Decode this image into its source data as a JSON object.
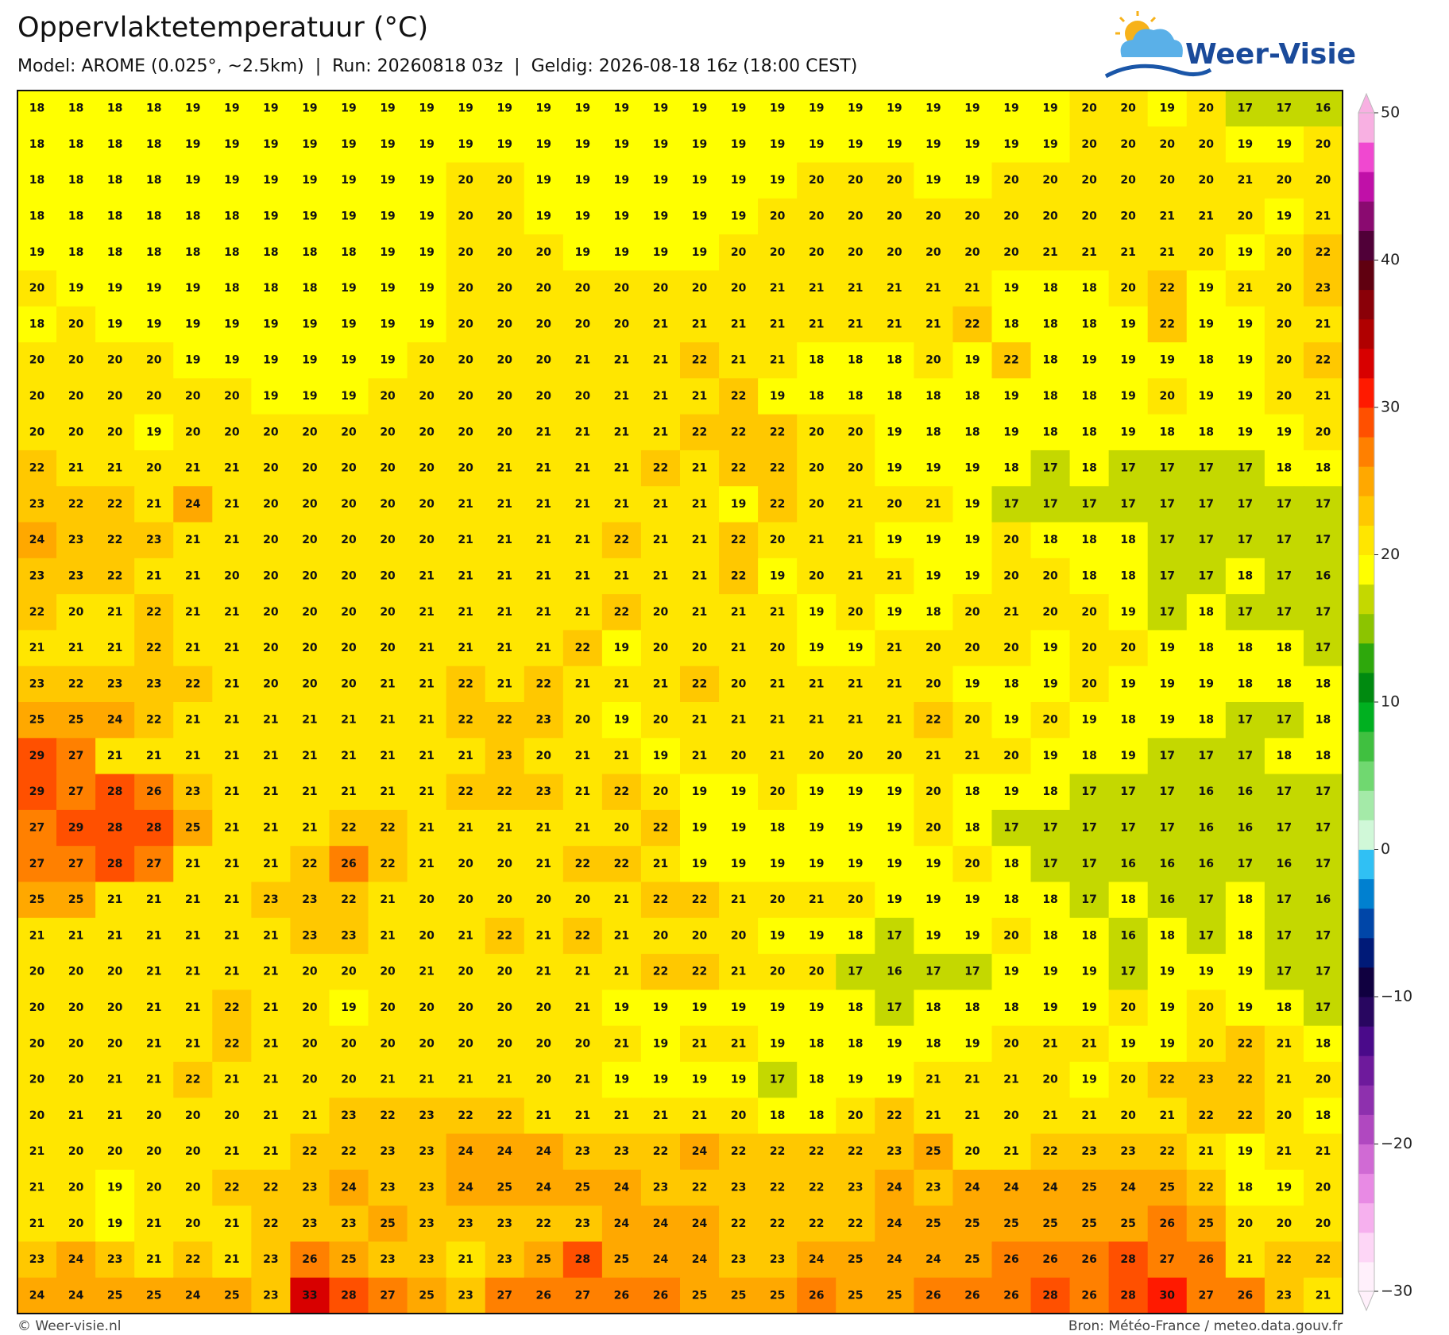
{
  "header": {
    "title": "Oppervlaktetemperatuur (°C)",
    "subtitle": "Model: AROME (0.025°, ~2.5km)  |  Run: 20260818 03z  |  Geldig: 2026-08-18 16z (18:00 CEST)"
  },
  "logo": "Weer-Visie",
  "map": {
    "rows": [
      [
        18,
        18,
        18,
        18,
        19,
        19,
        19,
        19,
        19,
        19,
        19,
        19,
        19,
        19,
        19,
        19,
        19,
        19,
        19,
        19,
        19,
        19,
        19,
        19,
        19,
        19,
        19,
        20,
        20,
        19,
        20,
        17,
        17,
        16
      ],
      [
        18,
        18,
        18,
        18,
        19,
        19,
        19,
        19,
        19,
        19,
        19,
        19,
        19,
        19,
        19,
        19,
        19,
        19,
        19,
        19,
        19,
        19,
        19,
        19,
        19,
        19,
        19,
        20,
        20,
        20,
        20,
        19,
        19,
        20
      ],
      [
        18,
        18,
        18,
        18,
        19,
        19,
        19,
        19,
        19,
        19,
        19,
        20,
        20,
        19,
        19,
        19,
        19,
        19,
        19,
        19,
        20,
        20,
        20,
        19,
        19,
        20,
        20,
        20,
        20,
        20,
        20,
        21,
        20,
        20
      ],
      [
        18,
        18,
        18,
        18,
        18,
        18,
        19,
        19,
        19,
        19,
        19,
        20,
        20,
        19,
        19,
        19,
        19,
        19,
        19,
        20,
        20,
        20,
        20,
        20,
        20,
        20,
        20,
        20,
        20,
        21,
        21,
        20,
        19,
        21
      ],
      [
        19,
        18,
        18,
        18,
        18,
        18,
        18,
        18,
        18,
        19,
        19,
        20,
        20,
        20,
        19,
        19,
        19,
        19,
        20,
        20,
        20,
        20,
        20,
        20,
        20,
        20,
        21,
        21,
        21,
        21,
        20,
        19,
        20,
        22
      ],
      [
        20,
        19,
        19,
        19,
        19,
        18,
        18,
        18,
        19,
        19,
        19,
        20,
        20,
        20,
        20,
        20,
        20,
        20,
        20,
        21,
        21,
        21,
        21,
        21,
        21,
        19,
        18,
        18,
        20,
        22,
        19,
        21,
        20,
        23
      ],
      [
        18,
        20,
        19,
        19,
        19,
        19,
        19,
        19,
        19,
        19,
        19,
        20,
        20,
        20,
        20,
        20,
        21,
        21,
        21,
        21,
        21,
        21,
        21,
        21,
        22,
        18,
        18,
        18,
        19,
        22,
        19,
        19,
        20,
        21
      ],
      [
        20,
        20,
        20,
        20,
        19,
        19,
        19,
        19,
        19,
        19,
        20,
        20,
        20,
        20,
        21,
        21,
        21,
        22,
        21,
        21,
        18,
        18,
        18,
        20,
        19,
        22,
        18,
        19,
        19,
        19,
        18,
        19,
        20,
        22
      ],
      [
        20,
        20,
        20,
        20,
        20,
        20,
        19,
        19,
        19,
        20,
        20,
        20,
        20,
        20,
        20,
        21,
        21,
        21,
        22,
        19,
        18,
        18,
        18,
        18,
        18,
        19,
        18,
        18,
        19,
        20,
        19,
        19,
        20,
        21
      ],
      [
        20,
        20,
        20,
        19,
        20,
        20,
        20,
        20,
        20,
        20,
        20,
        20,
        20,
        21,
        21,
        21,
        21,
        22,
        22,
        22,
        20,
        20,
        19,
        18,
        18,
        19,
        18,
        18,
        19,
        18,
        18,
        19,
        19,
        20
      ],
      [
        22,
        21,
        21,
        20,
        21,
        21,
        20,
        20,
        20,
        20,
        20,
        20,
        21,
        21,
        21,
        21,
        22,
        21,
        22,
        22,
        20,
        20,
        19,
        19,
        19,
        18,
        17,
        18,
        17,
        17,
        17,
        17,
        18,
        18
      ],
      [
        23,
        22,
        22,
        21,
        24,
        21,
        20,
        20,
        20,
        20,
        20,
        21,
        21,
        21,
        21,
        21,
        21,
        21,
        19,
        22,
        20,
        21,
        20,
        21,
        19,
        17,
        17,
        17,
        17,
        17,
        17,
        17,
        17,
        17
      ],
      [
        24,
        23,
        22,
        23,
        21,
        21,
        20,
        20,
        20,
        20,
        20,
        21,
        21,
        21,
        21,
        22,
        21,
        21,
        22,
        20,
        21,
        21,
        19,
        19,
        19,
        20,
        18,
        18,
        18,
        17,
        17,
        17,
        17,
        17
      ],
      [
        23,
        23,
        22,
        21,
        21,
        20,
        20,
        20,
        20,
        20,
        21,
        21,
        21,
        21,
        21,
        21,
        21,
        21,
        22,
        19,
        20,
        21,
        21,
        19,
        19,
        20,
        20,
        18,
        18,
        17,
        17,
        18,
        17,
        16
      ],
      [
        22,
        20,
        21,
        22,
        21,
        21,
        20,
        20,
        20,
        20,
        21,
        21,
        21,
        21,
        21,
        22,
        20,
        21,
        21,
        21,
        19,
        20,
        19,
        18,
        20,
        21,
        20,
        20,
        19,
        17,
        18,
        17,
        17,
        17
      ],
      [
        21,
        21,
        21,
        22,
        21,
        21,
        20,
        20,
        20,
        20,
        21,
        21,
        21,
        21,
        22,
        19,
        20,
        20,
        21,
        20,
        19,
        19,
        21,
        20,
        20,
        20,
        19,
        20,
        20,
        19,
        18,
        18,
        18,
        17
      ],
      [
        23,
        22,
        23,
        23,
        22,
        21,
        20,
        20,
        20,
        21,
        21,
        22,
        21,
        22,
        21,
        21,
        21,
        22,
        20,
        21,
        21,
        21,
        21,
        20,
        19,
        18,
        19,
        20,
        19,
        19,
        19,
        18,
        18,
        18
      ],
      [
        25,
        25,
        24,
        22,
        21,
        21,
        21,
        21,
        21,
        21,
        21,
        22,
        22,
        23,
        20,
        19,
        20,
        21,
        21,
        21,
        21,
        21,
        21,
        22,
        20,
        19,
        20,
        19,
        18,
        19,
        18,
        17,
        17,
        18
      ],
      [
        29,
        27,
        21,
        21,
        21,
        21,
        21,
        21,
        21,
        21,
        21,
        21,
        23,
        20,
        21,
        21,
        19,
        21,
        20,
        21,
        20,
        20,
        20,
        21,
        21,
        20,
        19,
        18,
        19,
        17,
        17,
        17,
        18,
        18
      ],
      [
        29,
        27,
        28,
        26,
        23,
        21,
        21,
        21,
        21,
        21,
        21,
        22,
        22,
        23,
        21,
        22,
        20,
        19,
        19,
        20,
        19,
        19,
        19,
        20,
        18,
        19,
        18,
        17,
        17,
        17,
        16,
        16,
        17,
        17
      ],
      [
        27,
        29,
        28,
        28,
        25,
        21,
        21,
        21,
        22,
        22,
        21,
        21,
        21,
        21,
        21,
        20,
        22,
        19,
        19,
        18,
        19,
        19,
        19,
        20,
        18,
        17,
        17,
        17,
        17,
        17,
        16,
        16,
        17,
        17
      ],
      [
        27,
        27,
        28,
        27,
        21,
        21,
        21,
        22,
        26,
        22,
        21,
        20,
        20,
        21,
        22,
        22,
        21,
        19,
        19,
        19,
        19,
        19,
        19,
        19,
        20,
        18,
        17,
        17,
        16,
        16,
        16,
        17,
        16,
        17
      ],
      [
        25,
        25,
        21,
        21,
        21,
        21,
        23,
        23,
        22,
        21,
        20,
        20,
        20,
        20,
        20,
        21,
        22,
        22,
        21,
        20,
        21,
        20,
        19,
        19,
        19,
        18,
        18,
        17,
        18,
        16,
        17,
        18,
        17,
        16
      ],
      [
        21,
        21,
        21,
        21,
        21,
        21,
        21,
        23,
        23,
        21,
        20,
        21,
        22,
        21,
        22,
        21,
        20,
        20,
        20,
        19,
        19,
        18,
        17,
        19,
        19,
        20,
        18,
        18,
        16,
        18,
        17,
        18,
        17,
        17
      ],
      [
        20,
        20,
        20,
        21,
        21,
        21,
        21,
        20,
        20,
        20,
        21,
        20,
        20,
        21,
        21,
        21,
        22,
        22,
        21,
        20,
        20,
        17,
        16,
        17,
        17,
        19,
        19,
        19,
        17,
        19,
        19,
        19,
        17,
        17
      ],
      [
        20,
        20,
        20,
        21,
        21,
        22,
        21,
        20,
        19,
        20,
        20,
        20,
        20,
        20,
        21,
        19,
        19,
        19,
        19,
        19,
        19,
        18,
        17,
        18,
        18,
        18,
        19,
        19,
        20,
        19,
        20,
        19,
        18,
        17
      ],
      [
        20,
        20,
        20,
        21,
        21,
        22,
        21,
        20,
        20,
        20,
        20,
        20,
        20,
        20,
        20,
        21,
        19,
        21,
        21,
        19,
        18,
        18,
        19,
        18,
        19,
        20,
        21,
        21,
        19,
        19,
        20,
        22,
        21,
        18
      ],
      [
        20,
        20,
        21,
        21,
        22,
        21,
        21,
        20,
        20,
        21,
        21,
        21,
        21,
        20,
        21,
        19,
        19,
        19,
        19,
        17,
        18,
        19,
        19,
        21,
        21,
        21,
        20,
        19,
        20,
        22,
        23,
        22,
        21,
        20
      ],
      [
        20,
        21,
        21,
        20,
        20,
        20,
        21,
        21,
        23,
        22,
        23,
        22,
        22,
        21,
        21,
        21,
        21,
        21,
        20,
        18,
        18,
        20,
        22,
        21,
        21,
        20,
        21,
        21,
        20,
        21,
        22,
        22,
        20,
        18
      ],
      [
        21,
        20,
        20,
        20,
        20,
        21,
        21,
        22,
        22,
        23,
        23,
        24,
        24,
        24,
        23,
        23,
        22,
        24,
        22,
        22,
        22,
        22,
        23,
        25,
        20,
        21,
        22,
        23,
        23,
        22,
        21,
        19,
        21,
        21
      ],
      [
        21,
        20,
        19,
        20,
        20,
        22,
        22,
        23,
        24,
        23,
        23,
        24,
        25,
        24,
        25,
        24,
        23,
        22,
        23,
        22,
        22,
        23,
        24,
        23,
        24,
        24,
        24,
        25,
        24,
        25,
        22,
        18,
        19,
        20
      ],
      [
        21,
        20,
        19,
        21,
        20,
        21,
        22,
        23,
        23,
        25,
        23,
        23,
        23,
        22,
        23,
        24,
        24,
        24,
        22,
        22,
        22,
        22,
        24,
        25,
        25,
        25,
        25,
        25,
        25,
        26,
        25,
        20,
        20,
        20
      ],
      [
        23,
        24,
        23,
        21,
        22,
        21,
        23,
        26,
        25,
        23,
        23,
        21,
        23,
        25,
        28,
        25,
        24,
        24,
        23,
        23,
        24,
        25,
        24,
        24,
        25,
        26,
        26,
        26,
        28,
        27,
        26,
        21,
        22,
        22
      ],
      [
        24,
        24,
        25,
        25,
        24,
        25,
        23,
        33,
        28,
        27,
        25,
        23,
        27,
        26,
        27,
        26,
        26,
        25,
        25,
        25,
        26,
        25,
        25,
        26,
        26,
        26,
        28,
        26,
        28,
        30,
        27,
        26,
        23,
        21
      ]
    ]
  },
  "colorbar": {
    "ylim": [
      -30,
      50
    ],
    "yticks": [
      50,
      40,
      30,
      20,
      10,
      0,
      {
        "value": -10,
        "label": "−10"
      },
      {
        "value": -20,
        "label": "−20"
      },
      {
        "value": -30,
        "label": "−30"
      }
    ],
    "colors": [
      "#fff0fb",
      "#fdd6f6",
      "#f6b0ee",
      "#e88ae4",
      "#d06ad4",
      "#b048c0",
      "#8e30ae",
      "#6e1a9c",
      "#4a0a8a",
      "#280660",
      "#100040",
      "#001a78",
      "#0046a8",
      "#0080d0",
      "#30c0f4",
      "#d0f8d8",
      "#a4eaa8",
      "#70d870",
      "#40c040",
      "#00b020",
      "#008a10",
      "#2ea80c",
      "#8cc400",
      "#c4d800",
      "#ffff00",
      "#ffe600",
      "#ffc800",
      "#ffa800",
      "#ff8000",
      "#ff5000",
      "#ff1a00",
      "#d80000",
      "#b00000",
      "#8a0008",
      "#600010",
      "#500038",
      "#8a0a70",
      "#c010a8",
      "#f048d0",
      "#f8b0e2"
    ]
  },
  "footer": {
    "left": "© Weer-visie.nl",
    "right": "Bron: Météo-France / meteo.data.gouv.fr"
  }
}
